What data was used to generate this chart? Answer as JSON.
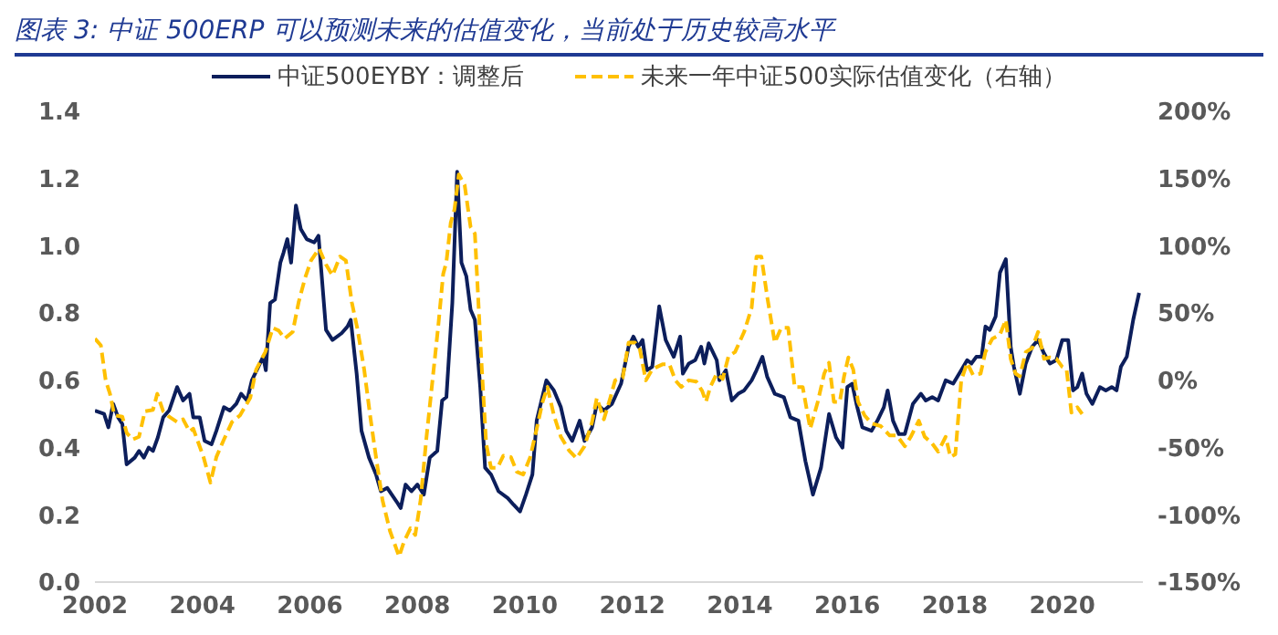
{
  "chart_data": {
    "type": "line",
    "title": "图表 3:  中证 500ERP 可以预测未来的估值变化，当前处于历史较高水平",
    "legend": "top",
    "xlim": [
      2002,
      2021.5
    ],
    "xticks": [
      2002,
      2004,
      2006,
      2008,
      2010,
      2012,
      2014,
      2016,
      2018,
      2020
    ],
    "ylim": [
      0,
      1.4
    ],
    "yticks": [
      {
        "value": 0,
        "label": "0.0"
      },
      0.2,
      0.4,
      0.6,
      0.8,
      {
        "value": 1,
        "label": "1.0"
      },
      1.2,
      1.4
    ],
    "y2lim": [
      -150,
      200
    ],
    "y2ticks": [
      {
        "value": -150,
        "label": "-150%"
      },
      {
        "value": -100,
        "label": "-100%"
      },
      {
        "value": -50,
        "label": "-50%"
      },
      {
        "value": 0,
        "label": "0%"
      },
      {
        "value": 50,
        "label": "50%"
      },
      {
        "value": 100,
        "label": "100%"
      },
      {
        "value": 150,
        "label": "150%"
      },
      {
        "value": 200,
        "label": "200%"
      }
    ],
    "series": [
      {
        "name": "中证500EYBY：调整后",
        "color": "#0c1e5b",
        "line_style": "solid",
        "x": [
          2002.0,
          2002.17,
          2002.25,
          2002.34,
          2002.43,
          2002.51,
          2002.59,
          2002.74,
          2002.82,
          2002.91,
          2003.0,
          2003.08,
          2003.17,
          2003.27,
          2003.38,
          2003.53,
          2003.64,
          2003.76,
          2003.83,
          2003.95,
          2004.04,
          2004.17,
          2004.26,
          2004.4,
          2004.51,
          2004.63,
          2004.72,
          2004.83,
          2004.92,
          2005.04,
          2005.13,
          2005.18,
          2005.26,
          2005.35,
          2005.45,
          2005.51,
          2005.58,
          2005.65,
          2005.74,
          2005.83,
          2005.94,
          2006.08,
          2006.16,
          2006.25,
          2006.3,
          2006.42,
          2006.59,
          2006.7,
          2006.76,
          2006.87,
          2006.96,
          2007.1,
          2007.23,
          2007.32,
          2007.44,
          2007.61,
          2007.69,
          2007.78,
          2007.89,
          2008.0,
          2008.12,
          2008.23,
          2008.37,
          2008.46,
          2008.54,
          2008.65,
          2008.74,
          2008.82,
          2008.91,
          2008.99,
          2009.07,
          2009.17,
          2009.26,
          2009.37,
          2009.51,
          2009.68,
          2009.79,
          2009.91,
          2010.02,
          2010.14,
          2010.22,
          2010.4,
          2010.54,
          2010.67,
          2010.77,
          2010.88,
          2011.02,
          2011.11,
          2011.25,
          2011.34,
          2011.47,
          2011.62,
          2011.79,
          2011.93,
          2012.02,
          2012.11,
          2012.19,
          2012.27,
          2012.37,
          2012.5,
          2012.62,
          2012.77,
          2012.89,
          2012.94,
          2013.05,
          2013.17,
          2013.28,
          2013.34,
          2013.42,
          2013.57,
          2013.62,
          2013.74,
          2013.85,
          2013.97,
          2014.08,
          2014.22,
          2014.31,
          2014.42,
          2014.51,
          2014.65,
          2014.82,
          2014.94,
          2015.09,
          2015.22,
          2015.36,
          2015.51,
          2015.66,
          2015.79,
          2015.91,
          2016.0,
          2016.09,
          2016.17,
          2016.28,
          2016.45,
          2016.56,
          2016.68,
          2016.75,
          2016.85,
          2016.96,
          2017.07,
          2017.22,
          2017.37,
          2017.46,
          2017.58,
          2017.69,
          2017.83,
          2017.97,
          2018.12,
          2018.23,
          2018.31,
          2018.4,
          2018.5,
          2018.57,
          2018.65,
          2018.76,
          2018.84,
          2018.95,
          2019.04,
          2019.1,
          2019.21,
          2019.32,
          2019.44,
          2019.55,
          2019.66,
          2019.77,
          2019.89,
          2020.0,
          2020.11,
          2020.2,
          2020.28,
          2020.37,
          2020.45,
          2020.56,
          2020.7,
          2020.81,
          2020.92,
          2021.01,
          2021.09,
          2021.2,
          2021.32,
          2021.43
        ],
        "values": [
          0.51,
          0.5,
          0.46,
          0.53,
          0.49,
          0.47,
          0.35,
          0.37,
          0.39,
          0.37,
          0.4,
          0.39,
          0.43,
          0.49,
          0.51,
          0.58,
          0.54,
          0.56,
          0.49,
          0.49,
          0.42,
          0.41,
          0.45,
          0.52,
          0.51,
          0.53,
          0.56,
          0.54,
          0.6,
          0.64,
          0.67,
          0.63,
          0.83,
          0.84,
          0.95,
          0.98,
          1.02,
          0.95,
          1.12,
          1.05,
          1.02,
          1.01,
          1.03,
          0.85,
          0.75,
          0.72,
          0.74,
          0.76,
          0.78,
          0.62,
          0.45,
          0.37,
          0.32,
          0.27,
          0.28,
          0.24,
          0.22,
          0.29,
          0.27,
          0.29,
          0.26,
          0.37,
          0.39,
          0.54,
          0.55,
          0.83,
          1.22,
          0.95,
          0.91,
          0.81,
          0.78,
          0.58,
          0.34,
          0.32,
          0.27,
          0.25,
          0.23,
          0.21,
          0.26,
          0.32,
          0.48,
          0.6,
          0.57,
          0.52,
          0.45,
          0.42,
          0.48,
          0.42,
          0.46,
          0.53,
          0.51,
          0.53,
          0.59,
          0.7,
          0.73,
          0.7,
          0.72,
          0.63,
          0.64,
          0.82,
          0.72,
          0.67,
          0.73,
          0.62,
          0.65,
          0.66,
          0.7,
          0.65,
          0.71,
          0.66,
          0.6,
          0.63,
          0.54,
          0.56,
          0.57,
          0.6,
          0.63,
          0.67,
          0.61,
          0.56,
          0.55,
          0.49,
          0.48,
          0.36,
          0.26,
          0.34,
          0.5,
          0.43,
          0.4,
          0.58,
          0.59,
          0.53,
          0.46,
          0.45,
          0.48,
          0.52,
          0.57,
          0.48,
          0.44,
          0.44,
          0.53,
          0.56,
          0.54,
          0.55,
          0.54,
          0.6,
          0.59,
          0.63,
          0.66,
          0.65,
          0.67,
          0.67,
          0.76,
          0.75,
          0.79,
          0.92,
          0.96,
          0.7,
          0.64,
          0.56,
          0.65,
          0.7,
          0.72,
          0.68,
          0.65,
          0.66,
          0.72,
          0.72,
          0.57,
          0.58,
          0.62,
          0.56,
          0.53,
          0.58,
          0.57,
          0.58,
          0.57,
          0.64,
          0.67,
          0.78,
          0.86
        ]
      },
      {
        "name": "未来一年中证500实际估值变化（右轴）",
        "color": "#ffc000",
        "line_style": "dashed",
        "axis": "y2",
        "x": [
          2002.0,
          2002.11,
          2002.2,
          2002.28,
          2002.36,
          2002.51,
          2002.59,
          2002.7,
          2002.82,
          2002.93,
          2003.08,
          2003.16,
          2003.27,
          2003.38,
          2003.53,
          2003.64,
          2003.76,
          2003.83,
          2004.02,
          2004.15,
          2004.26,
          2004.4,
          2004.55,
          2004.7,
          2004.89,
          2005.0,
          2005.17,
          2005.31,
          2005.42,
          2005.53,
          2005.68,
          2005.79,
          2005.91,
          2006.02,
          2006.17,
          2006.3,
          2006.42,
          2006.56,
          2006.67,
          2006.78,
          2006.89,
          2007.01,
          2007.12,
          2007.23,
          2007.35,
          2007.49,
          2007.66,
          2007.75,
          2007.87,
          2007.96,
          2008.06,
          2008.17,
          2008.39,
          2008.48,
          2008.54,
          2008.62,
          2008.69,
          2008.77,
          2008.88,
          2008.99,
          2009.07,
          2009.19,
          2009.28,
          2009.37,
          2009.49,
          2009.6,
          2009.74,
          2009.85,
          2009.97,
          2010.1,
          2010.22,
          2010.33,
          2010.42,
          2010.54,
          2010.67,
          2010.82,
          2010.96,
          2011.11,
          2011.25,
          2011.34,
          2011.47,
          2011.59,
          2011.68,
          2011.82,
          2011.93,
          2012.05,
          2012.14,
          2012.25,
          2012.37,
          2012.46,
          2012.57,
          2012.69,
          2012.8,
          2012.91,
          2013.05,
          2013.19,
          2013.3,
          2013.37,
          2013.45,
          2013.57,
          2013.68,
          2013.79,
          2013.91,
          2014.08,
          2014.22,
          2014.31,
          2014.4,
          2014.51,
          2014.65,
          2014.77,
          2014.9,
          2015.02,
          2015.17,
          2015.31,
          2015.45,
          2015.57,
          2015.66,
          2015.75,
          2015.86,
          2015.94,
          2016.02,
          2016.11,
          2016.2,
          2016.32,
          2016.45,
          2016.62,
          2016.79,
          2016.92,
          2017.07,
          2017.18,
          2017.33,
          2017.44,
          2017.58,
          2017.69,
          2017.83,
          2017.92,
          2018.01,
          2018.12,
          2018.23,
          2018.34,
          2018.48,
          2018.57,
          2018.7,
          2018.84,
          2018.95,
          2019.04,
          2019.13,
          2019.21,
          2019.32,
          2019.44,
          2019.55,
          2019.66,
          2019.77,
          2019.89,
          2020.0,
          2020.08,
          2020.17,
          2020.28,
          2020.37
        ],
        "values": [
          31,
          26,
          0,
          -10,
          -26,
          -27,
          -39,
          -44,
          -42,
          -23,
          -22,
          -10,
          -23,
          -27,
          -31,
          -29,
          -38,
          -36,
          -57,
          -76,
          -57,
          -44,
          -31,
          -26,
          -13,
          8,
          21,
          39,
          37,
          31,
          36,
          58,
          76,
          89,
          98,
          86,
          78,
          92,
          89,
          58,
          37,
          8,
          -26,
          -57,
          -89,
          -112,
          -131,
          -120,
          -110,
          -115,
          -89,
          -42,
          41,
          79,
          88,
          117,
          127,
          153,
          145,
          114,
          109,
          15,
          -47,
          -65,
          -65,
          -56,
          -57,
          -68,
          -70,
          -57,
          -36,
          -16,
          -5,
          -26,
          -42,
          -52,
          -58,
          -49,
          -31,
          -13,
          -29,
          -13,
          0,
          2,
          28,
          28,
          23,
          0,
          8,
          10,
          12,
          12,
          0,
          -5,
          0,
          -1,
          -8,
          -16,
          -5,
          5,
          1,
          18,
          21,
          36,
          54,
          92,
          92,
          62,
          28,
          39,
          39,
          -5,
          -5,
          -36,
          -16,
          5,
          13,
          -16,
          -16,
          3,
          17,
          8,
          -16,
          -26,
          -32,
          -34,
          -41,
          -41,
          -49,
          -42,
          -30,
          -42,
          -47,
          -53,
          -42,
          -57,
          -55,
          0,
          13,
          4,
          5,
          21,
          31,
          34,
          45,
          16,
          5,
          3,
          21,
          24,
          36,
          16,
          17,
          16,
          10,
          8,
          -24,
          -20,
          -25
        ]
      }
    ]
  }
}
